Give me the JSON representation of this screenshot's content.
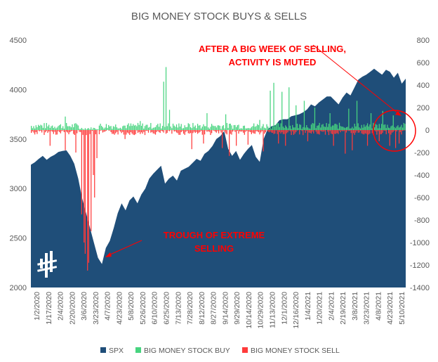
{
  "chart_data": {
    "type": "area+bar",
    "title": "BIG MONEY STOCK BUYS & SELLS",
    "left_axis": {
      "min": 2000,
      "max": 4500,
      "ticks": [
        2000,
        2500,
        3000,
        3500,
        4000,
        4500
      ]
    },
    "right_axis": {
      "min": -1400,
      "max": 800,
      "ticks": [
        -1400,
        -1200,
        -1000,
        -800,
        -600,
        -400,
        -200,
        0,
        200,
        400,
        600,
        800
      ]
    },
    "x_ticks": [
      "1/2/2020",
      "1/17/2020",
      "2/4/2020",
      "2/20/2020",
      "3/6/2020",
      "3/23/2020",
      "4/7/2020",
      "4/23/2020",
      "5/8/2020",
      "5/26/2020",
      "6/10/2020",
      "6/25/2020",
      "7/13/2020",
      "7/28/2020",
      "8/12/2020",
      "8/27/2020",
      "9/14/2020",
      "9/29/2020",
      "10/14/2020",
      "10/29/2020",
      "11/13/2020",
      "12/1/2020",
      "12/16/2020",
      "1/4/2021",
      "1/20/2021",
      "2/4/2021",
      "2/19/2021",
      "3/8/2021",
      "3/23/2021",
      "4/8/2021",
      "4/23/2021",
      "5/10/2021"
    ],
    "series": [
      {
        "name": "SPX",
        "color": "#1f4e79",
        "values": [
          3240,
          3265,
          3300,
          3330,
          3290,
          3320,
          3340,
          3370,
          3380,
          3386,
          3330,
          3250,
          3100,
          2900,
          2750,
          2600,
          2450,
          2300,
          2237,
          2400,
          2470,
          2600,
          2750,
          2850,
          2780,
          2880,
          2920,
          2850,
          2940,
          3000,
          3100,
          3150,
          3190,
          3230,
          3050,
          3100,
          3130,
          3080,
          3180,
          3200,
          3220,
          3260,
          3300,
          3280,
          3350,
          3380,
          3430,
          3500,
          3530,
          3580,
          3400,
          3330,
          3380,
          3290,
          3350,
          3400,
          3440,
          3320,
          3270,
          3500,
          3600,
          3630,
          3640,
          3690,
          3700,
          3700,
          3730,
          3740,
          3750,
          3770,
          3800,
          3850,
          3830,
          3870,
          3900,
          3930,
          3930,
          3890,
          3850,
          3920,
          3970,
          3940,
          4020,
          4100,
          4130,
          4150,
          4180,
          4210,
          4180,
          4150,
          4200,
          4180,
          4120,
          4170,
          4060,
          4110
        ],
        "x_label_positions_note": "weekly approximate closes"
      },
      {
        "name": "BIG MONEY STOCK BUY",
        "color": "#47d47f"
      },
      {
        "name": "BIG MONEY STOCK SELL",
        "color": "#ff3b3b"
      }
    ],
    "buy_peaks": [
      [
        0.09,
        120
      ],
      [
        0.29,
        80
      ],
      [
        0.355,
        430
      ],
      [
        0.36,
        560
      ],
      [
        0.37,
        180
      ],
      [
        0.47,
        150
      ],
      [
        0.52,
        140
      ],
      [
        0.61,
        90
      ],
      [
        0.64,
        350
      ],
      [
        0.65,
        420
      ],
      [
        0.67,
        340
      ],
      [
        0.69,
        380
      ],
      [
        0.71,
        220
      ],
      [
        0.73,
        260
      ],
      [
        0.76,
        200
      ],
      [
        0.8,
        150
      ],
      [
        0.85,
        190
      ],
      [
        0.87,
        260
      ],
      [
        0.91,
        150
      ],
      [
        0.94,
        170
      ],
      [
        0.97,
        130
      ]
    ],
    "sell_troughs": [
      [
        0.05,
        -140
      ],
      [
        0.09,
        -180
      ],
      [
        0.12,
        -200
      ],
      [
        0.135,
        -750
      ],
      [
        0.14,
        -1000
      ],
      [
        0.145,
        -1100
      ],
      [
        0.15,
        -1250
      ],
      [
        0.155,
        -1180
      ],
      [
        0.16,
        -900
      ],
      [
        0.165,
        -400
      ],
      [
        0.17,
        -600
      ],
      [
        0.175,
        -250
      ],
      [
        0.25,
        -80
      ],
      [
        0.43,
        -170
      ],
      [
        0.46,
        -120
      ],
      [
        0.51,
        -160
      ],
      [
        0.53,
        -230
      ],
      [
        0.55,
        -140
      ],
      [
        0.58,
        -130
      ],
      [
        0.62,
        -190
      ],
      [
        0.66,
        -120
      ],
      [
        0.68,
        -140
      ],
      [
        0.74,
        -100
      ],
      [
        0.81,
        -140
      ],
      [
        0.84,
        -210
      ],
      [
        0.86,
        -180
      ],
      [
        0.9,
        -140
      ],
      [
        0.93,
        -100
      ],
      [
        0.96,
        -140
      ],
      [
        0.975,
        -160
      ],
      [
        0.985,
        -120
      ]
    ],
    "annotations": [
      {
        "lines": [
          "AFTER A BIG WEEK OF SELLING,",
          "ACTIVITY IS MUTED"
        ]
      },
      {
        "lines": [
          "TROUGH OF EXTREME",
          "SELLING"
        ]
      }
    ],
    "legend": {
      "placement": "bottom"
    }
  }
}
